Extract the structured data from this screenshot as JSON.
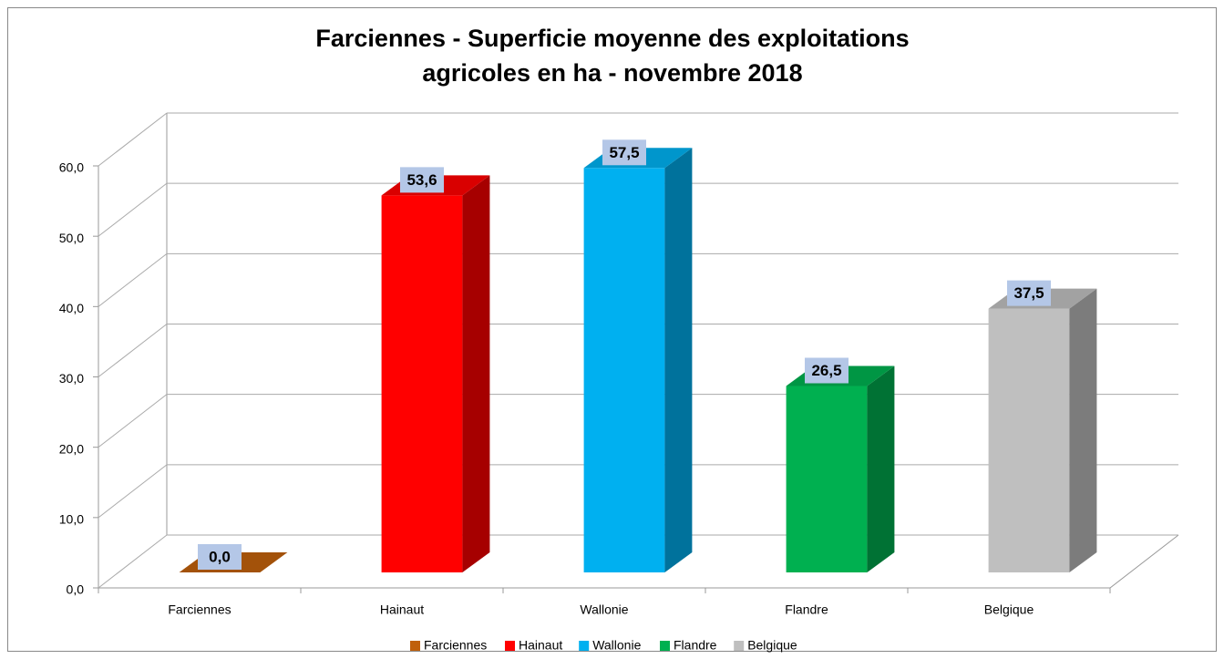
{
  "chart_data": {
    "type": "bar3d",
    "title": [
      "Farciennes - Superficie moyenne des exploitations",
      "agricoles en ha - novembre 2018"
    ],
    "categories": [
      "Farciennes",
      "Hainaut",
      "Wallonie",
      "Flandre",
      "Belgique"
    ],
    "values": [
      0,
      53.6,
      57.5,
      26.5,
      37.5
    ],
    "value_labels": [
      "0,0",
      "53,6",
      "57,5",
      "26,5",
      "37,5"
    ],
    "colors": [
      "#c0600c",
      "#ff0000",
      "#00b0f0",
      "#00b050",
      "#bfbfbf"
    ],
    "ylim": [
      0,
      60
    ],
    "yticks": [
      {
        "value": 0,
        "label": "0,0"
      },
      {
        "value": 10,
        "label": "10,0"
      },
      {
        "value": 20,
        "label": "20,0"
      },
      {
        "value": 30,
        "label": "30,0"
      },
      {
        "value": 40,
        "label": "40,0"
      },
      {
        "value": 50,
        "label": "50,0"
      },
      {
        "value": 60,
        "label": "60,0"
      }
    ],
    "grid": true,
    "legend": "bottom"
  }
}
